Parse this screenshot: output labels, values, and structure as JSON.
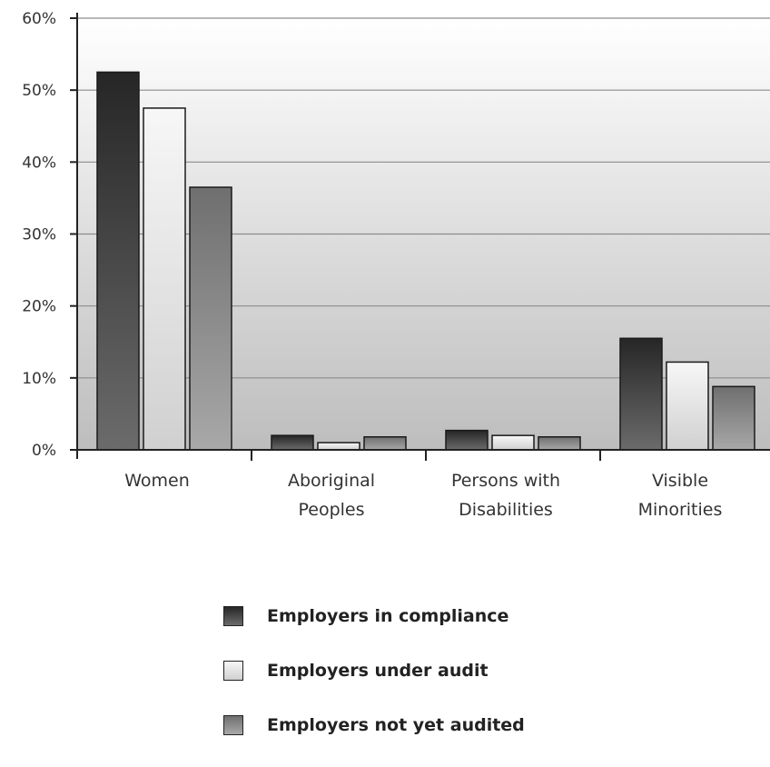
{
  "chart_data": {
    "type": "bar",
    "categories": [
      "Women",
      "Aboriginal Peoples",
      "Persons with Disabilities",
      "Visible Minorities"
    ],
    "category_lines": [
      [
        "Women"
      ],
      [
        "Aboriginal",
        "Peoples"
      ],
      [
        "Persons with",
        "Disabilities"
      ],
      [
        "Visible",
        "Minorities"
      ]
    ],
    "series": [
      {
        "name": "Employers in compliance",
        "values": [
          52.5,
          2.0,
          2.7,
          15.5
        ],
        "color": "#2e2e2e"
      },
      {
        "name": "Employers under audit",
        "values": [
          47.5,
          1.0,
          2.0,
          12.2
        ],
        "color": "#e2e2e2"
      },
      {
        "name": "Employers not yet audited",
        "values": [
          36.5,
          1.8,
          1.8,
          8.8
        ],
        "color": "#8a8a8a"
      }
    ],
    "y_ticks": [
      "0%",
      "10%",
      "20%",
      "30%",
      "40%",
      "50%",
      "60%"
    ],
    "ylim": [
      0,
      60
    ],
    "grid": true,
    "legend_position": "bottom-center"
  }
}
